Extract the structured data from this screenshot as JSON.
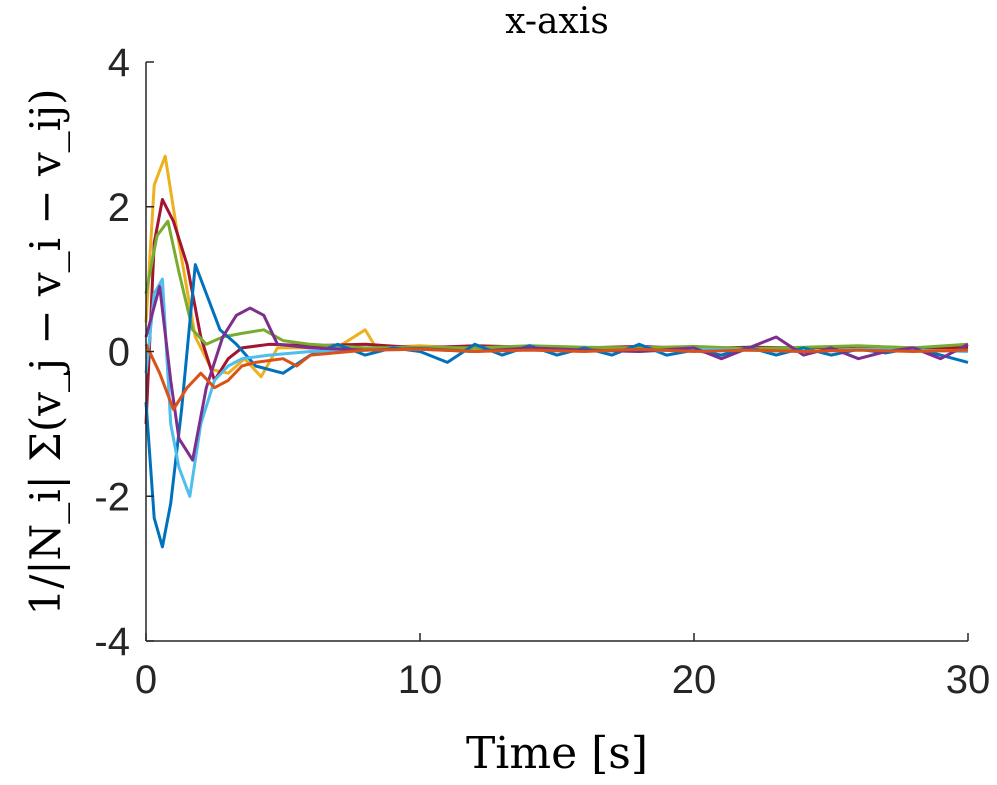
{
  "chart_data": {
    "type": "line",
    "title": "x-axis",
    "xlabel": "Time [s]",
    "ylabel": "1/|N_i| Σ(v_j − v_i − v_ij)",
    "xlim": [
      0,
      30
    ],
    "ylim": [
      -4,
      4
    ],
    "xticks": [
      "0",
      "10",
      "20",
      "30"
    ],
    "yticks": [
      "4",
      "2",
      "0",
      "-2",
      "-4"
    ],
    "grid": false,
    "legend": "none",
    "series": [
      {
        "color": "#EDB120",
        "values": [
          [
            0,
            0.4
          ],
          [
            0.3,
            2.3
          ],
          [
            0.7,
            2.7
          ],
          [
            1.2,
            1.5
          ],
          [
            1.8,
            0.2
          ],
          [
            2.4,
            -0.25
          ],
          [
            3.0,
            -0.3
          ],
          [
            3.6,
            -0.1
          ],
          [
            4.2,
            -0.35
          ],
          [
            4.8,
            0.05
          ],
          [
            6,
            0.05
          ],
          [
            7,
            0.06
          ],
          [
            8,
            0.3
          ],
          [
            8.4,
            0.05
          ],
          [
            10,
            0.08
          ],
          [
            12,
            0.04
          ],
          [
            14,
            0.07
          ],
          [
            16,
            0.05
          ],
          [
            18,
            0.05
          ],
          [
            20,
            0.06
          ],
          [
            22,
            0.03
          ],
          [
            24,
            0.05
          ],
          [
            26,
            0.06
          ],
          [
            28,
            0.04
          ],
          [
            30,
            0.05
          ]
        ]
      },
      {
        "color": "#A2142F",
        "values": [
          [
            0,
            -1.0
          ],
          [
            0.3,
            1.5
          ],
          [
            0.6,
            2.1
          ],
          [
            1.0,
            1.8
          ],
          [
            1.5,
            1.2
          ],
          [
            2.0,
            0.2
          ],
          [
            2.5,
            -0.4
          ],
          [
            3.0,
            -0.1
          ],
          [
            3.5,
            0.05
          ],
          [
            4.5,
            0.1
          ],
          [
            6,
            0.08
          ],
          [
            8,
            0.1
          ],
          [
            10,
            0.05
          ],
          [
            12,
            0.08
          ],
          [
            14,
            0.06
          ],
          [
            16,
            0.05
          ],
          [
            18,
            0.07
          ],
          [
            20,
            0.04
          ],
          [
            22,
            0.06
          ],
          [
            24,
            0.05
          ],
          [
            26,
            0.07
          ],
          [
            28,
            0.05
          ],
          [
            30,
            0.06
          ]
        ]
      },
      {
        "color": "#77AC30",
        "values": [
          [
            0,
            0.8
          ],
          [
            0.4,
            1.6
          ],
          [
            0.8,
            1.8
          ],
          [
            1.2,
            1.1
          ],
          [
            1.7,
            0.3
          ],
          [
            2.2,
            0.1
          ],
          [
            2.8,
            0.2
          ],
          [
            3.5,
            0.25
          ],
          [
            4.3,
            0.3
          ],
          [
            5,
            0.15
          ],
          [
            6,
            0.1
          ],
          [
            8,
            0.05
          ],
          [
            10,
            0.06
          ],
          [
            12,
            0.05
          ],
          [
            14,
            0.08
          ],
          [
            16,
            0.06
          ],
          [
            18,
            0.05
          ],
          [
            20,
            0.07
          ],
          [
            22,
            0.04
          ],
          [
            24,
            0.06
          ],
          [
            26,
            0.08
          ],
          [
            28,
            0.05
          ],
          [
            30,
            0.1
          ]
        ]
      },
      {
        "color": "#0072BD",
        "values": [
          [
            0,
            -0.7
          ],
          [
            0.3,
            -2.3
          ],
          [
            0.6,
            -2.7
          ],
          [
            0.9,
            -2.1
          ],
          [
            1.3,
            -0.8
          ],
          [
            1.8,
            1.2
          ],
          [
            2.2,
            0.8
          ],
          [
            2.7,
            0.3
          ],
          [
            3.3,
            0.1
          ],
          [
            4.0,
            -0.2
          ],
          [
            5.0,
            -0.3
          ],
          [
            6,
            -0.05
          ],
          [
            7,
            0.1
          ],
          [
            8,
            -0.05
          ],
          [
            9,
            0.05
          ],
          [
            10,
            0.0
          ],
          [
            11,
            -0.15
          ],
          [
            12,
            0.1
          ],
          [
            13,
            -0.05
          ],
          [
            14,
            0.08
          ],
          [
            15,
            -0.05
          ],
          [
            16,
            0.05
          ],
          [
            17,
            -0.05
          ],
          [
            18,
            0.1
          ],
          [
            19,
            -0.05
          ],
          [
            20,
            0.02
          ],
          [
            21,
            -0.05
          ],
          [
            22,
            0.06
          ],
          [
            23,
            -0.05
          ],
          [
            24,
            0.05
          ],
          [
            25,
            -0.05
          ],
          [
            26,
            0.03
          ],
          [
            27,
            -0.02
          ],
          [
            28,
            0.05
          ],
          [
            29,
            -0.05
          ],
          [
            30,
            -0.15
          ]
        ]
      },
      {
        "color": "#4DBEEE",
        "values": [
          [
            0,
            -0.3
          ],
          [
            0.3,
            0.8
          ],
          [
            0.6,
            1.0
          ],
          [
            0.9,
            -1.0
          ],
          [
            1.2,
            -1.6
          ],
          [
            1.6,
            -2.0
          ],
          [
            2.0,
            -1.0
          ],
          [
            2.5,
            -0.4
          ],
          [
            3.0,
            -0.2
          ],
          [
            3.5,
            -0.1
          ],
          [
            4.5,
            -0.05
          ],
          [
            6,
            0.0
          ],
          [
            8,
            0.02
          ],
          [
            10,
            0.03
          ],
          [
            12,
            0.0
          ],
          [
            14,
            0.04
          ],
          [
            16,
            0.02
          ],
          [
            18,
            0.0
          ],
          [
            20,
            0.03
          ],
          [
            22,
            0.02
          ],
          [
            24,
            0.0
          ],
          [
            26,
            0.03
          ],
          [
            28,
            0.02
          ],
          [
            30,
            0.0
          ]
        ]
      },
      {
        "color": "#7E2F8E",
        "values": [
          [
            0,
            0.2
          ],
          [
            0.5,
            0.9
          ],
          [
            0.9,
            -0.4
          ],
          [
            1.2,
            -1.2
          ],
          [
            1.7,
            -1.5
          ],
          [
            2.2,
            -0.5
          ],
          [
            2.8,
            0.2
          ],
          [
            3.3,
            0.5
          ],
          [
            3.8,
            0.6
          ],
          [
            4.3,
            0.5
          ],
          [
            4.8,
            0.1
          ],
          [
            6,
            0.05
          ],
          [
            8,
            0.02
          ],
          [
            10,
            0.04
          ],
          [
            12,
            0.0
          ],
          [
            14,
            0.05
          ],
          [
            16,
            0.02
          ],
          [
            18,
            0.0
          ],
          [
            20,
            0.05
          ],
          [
            21,
            -0.1
          ],
          [
            22,
            0.05
          ],
          [
            23,
            0.2
          ],
          [
            24,
            -0.05
          ],
          [
            25,
            0.05
          ],
          [
            26,
            -0.1
          ],
          [
            27,
            0.0
          ],
          [
            28,
            0.05
          ],
          [
            29,
            -0.1
          ],
          [
            30,
            0.1
          ]
        ]
      },
      {
        "color": "#D95319",
        "values": [
          [
            0,
            0.1
          ],
          [
            0.5,
            -0.3
          ],
          [
            1.0,
            -0.8
          ],
          [
            1.5,
            -0.5
          ],
          [
            2.0,
            -0.3
          ],
          [
            2.5,
            -0.5
          ],
          [
            3.0,
            -0.4
          ],
          [
            3.5,
            -0.2
          ],
          [
            4.0,
            -0.15
          ],
          [
            5.0,
            -0.1
          ],
          [
            5.5,
            -0.2
          ],
          [
            6,
            -0.05
          ],
          [
            8,
            0.02
          ],
          [
            10,
            0.03
          ],
          [
            12,
            0.0
          ],
          [
            14,
            0.02
          ],
          [
            16,
            0.0
          ],
          [
            18,
            0.03
          ],
          [
            20,
            0.0
          ],
          [
            22,
            0.02
          ],
          [
            24,
            0.0
          ],
          [
            26,
            0.02
          ],
          [
            28,
            0.0
          ],
          [
            30,
            0.02
          ]
        ]
      }
    ]
  }
}
